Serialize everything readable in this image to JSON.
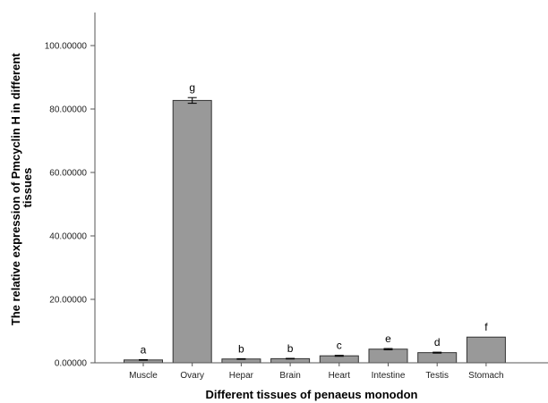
{
  "chart_data": {
    "type": "bar",
    "categories": [
      "Muscle",
      "Ovary",
      "Hepar",
      "Brain",
      "Heart",
      "Intestine",
      "Testis",
      "Stomach"
    ],
    "values": [
      0.9,
      82.7,
      1.2,
      1.3,
      2.2,
      4.3,
      3.2,
      8.1
    ],
    "errors": [
      0.1,
      0.9,
      0.1,
      0.1,
      0.15,
      0.2,
      0.15,
      0
    ],
    "significance_labels": [
      "a",
      "g",
      "b",
      "b",
      "c",
      "e",
      "d",
      "f"
    ],
    "xlabel": "Different tissues of penaeus monodon",
    "ylabel_lines": [
      "The relative expression of Pmcyclin H in different",
      "tissues"
    ],
    "ylim": [
      0,
      110
    ],
    "yticks": [
      0,
      20,
      40,
      60,
      80,
      100
    ],
    "ytick_labels": [
      "0.00000",
      "20.00000",
      "40.00000",
      "60.00000",
      "80.00000",
      "100.00000"
    ],
    "grid": false,
    "colors": {
      "bar_fill": "#999999",
      "bar_stroke": "#333333",
      "axis": "#555555"
    }
  }
}
